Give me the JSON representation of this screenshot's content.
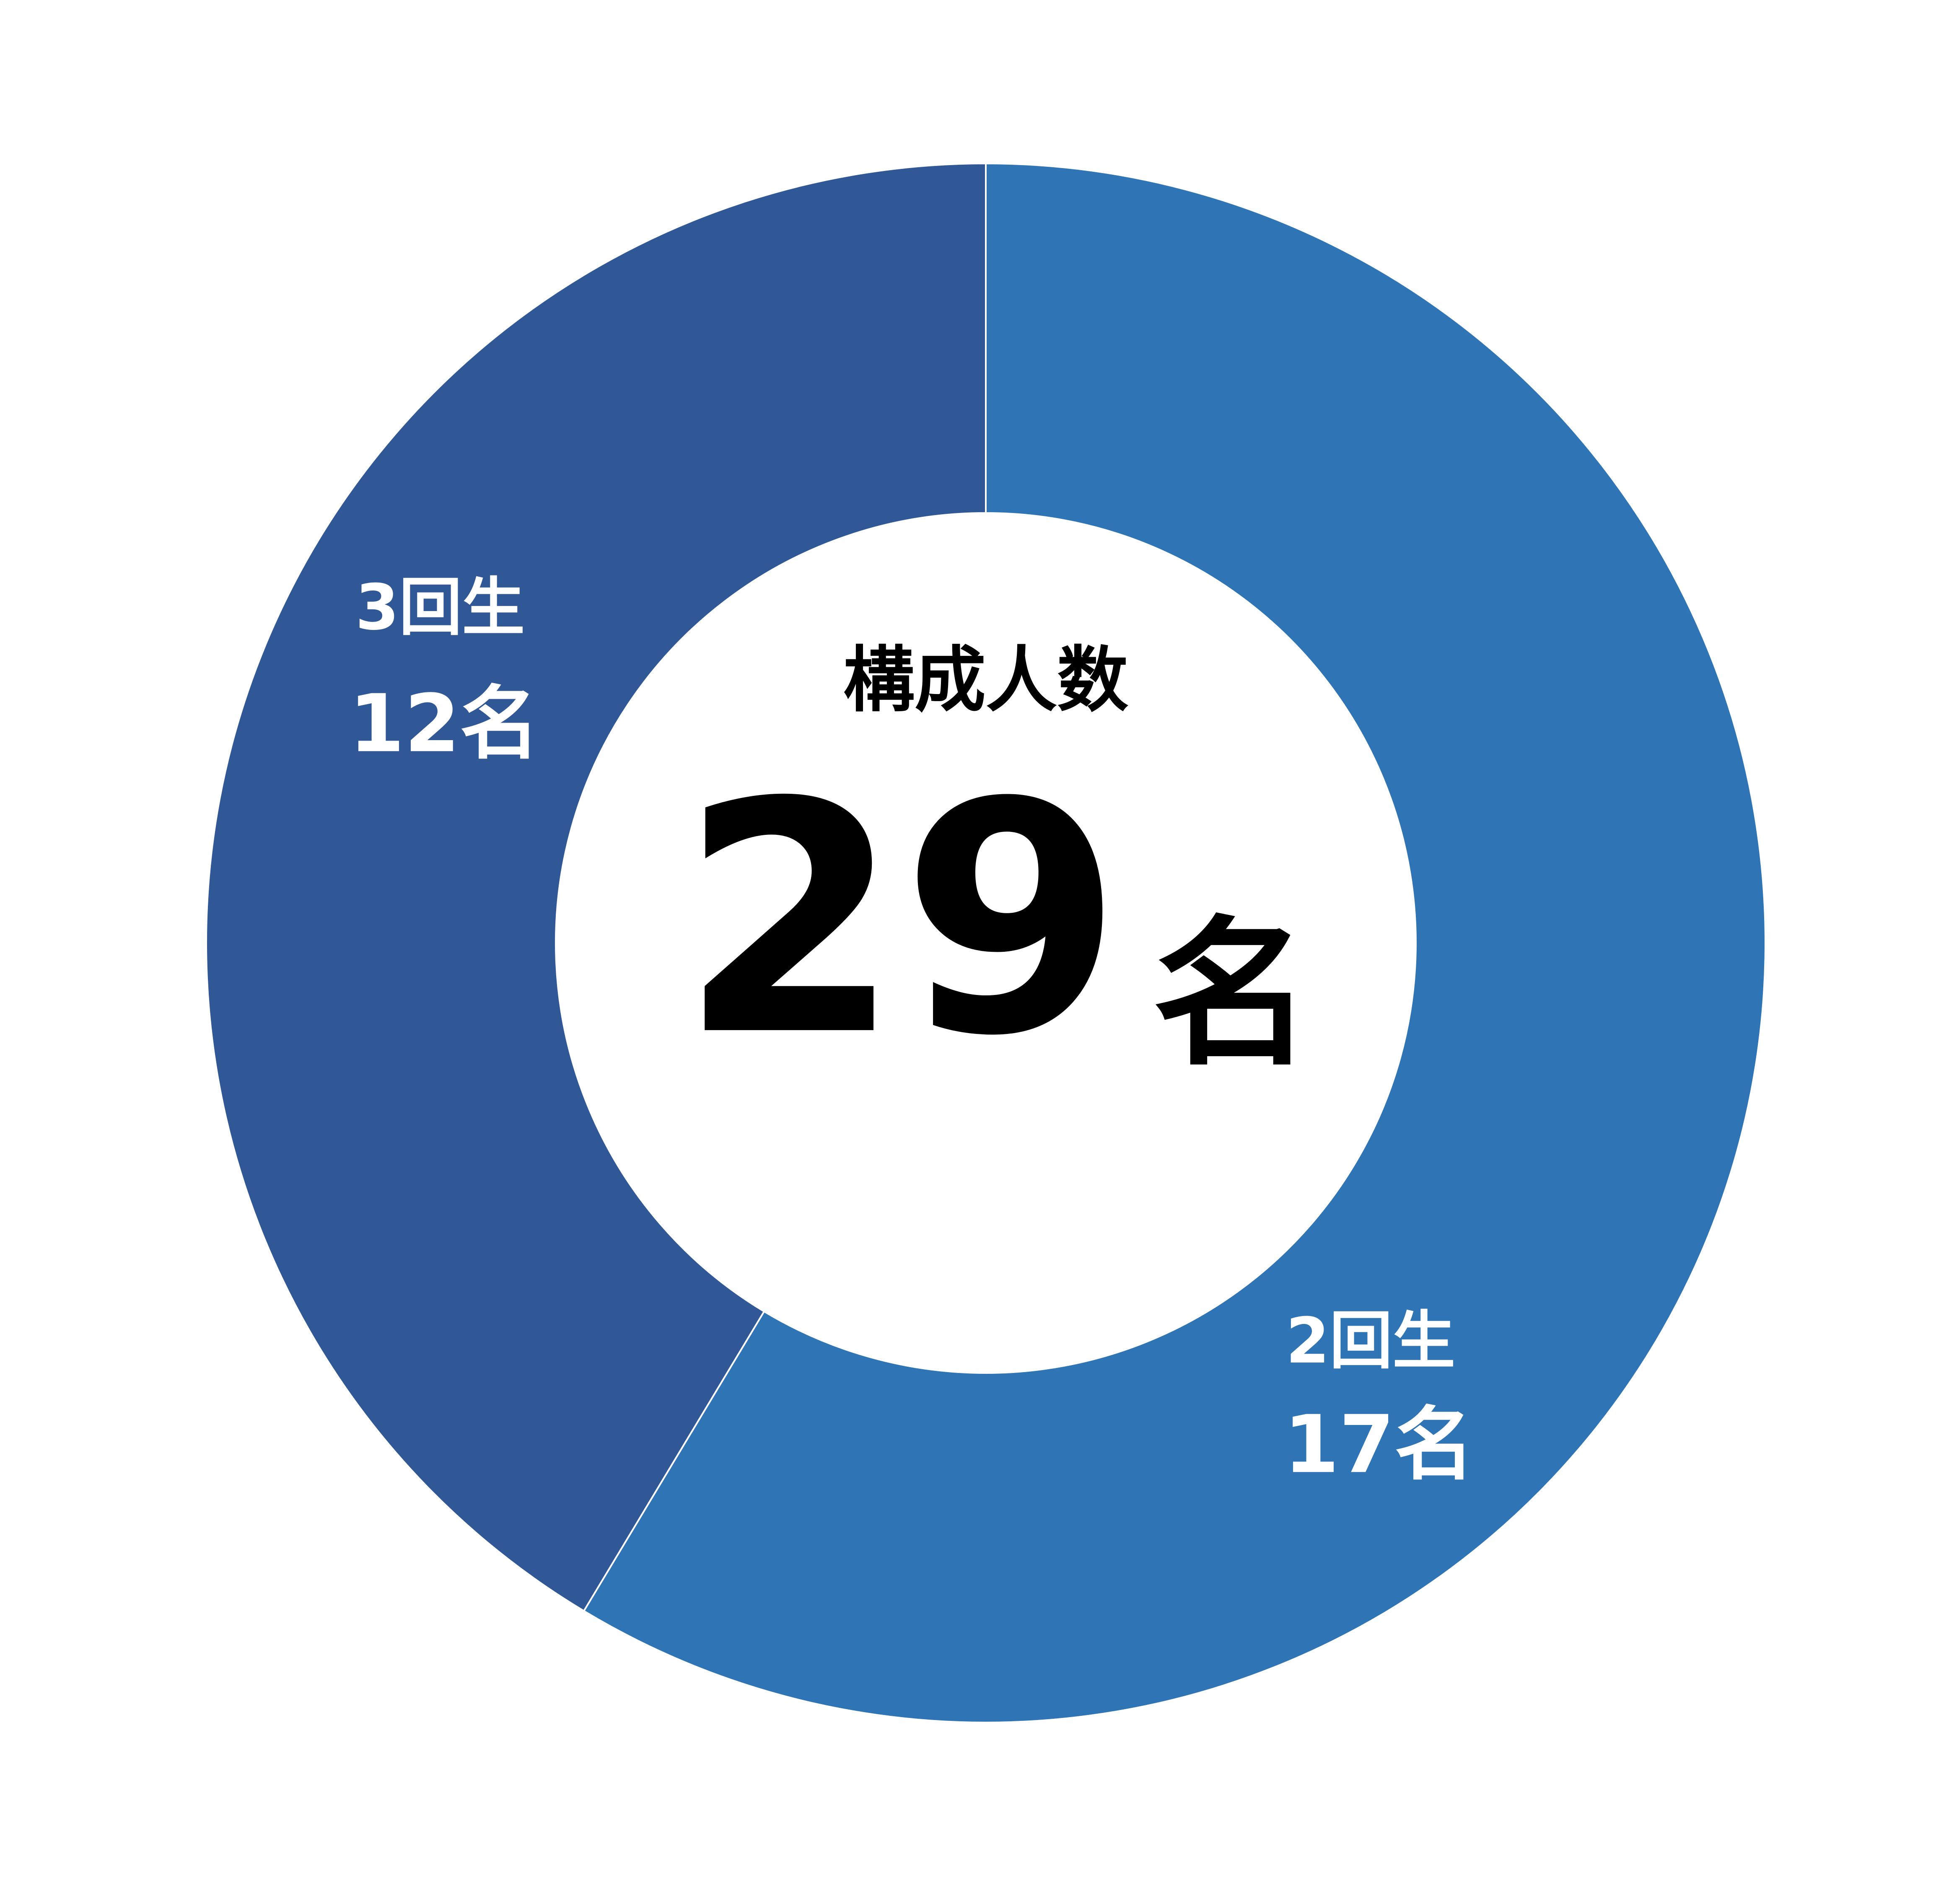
{
  "chart_data": {
    "type": "donut",
    "center_title": "構成人数",
    "total": 29,
    "total_unit": "名",
    "categories": [
      "2回生",
      "3回生"
    ],
    "values": [
      17,
      12
    ],
    "value_labels": [
      "17名",
      "12名"
    ],
    "colors": [
      "#2f74b5",
      "#305796"
    ]
  }
}
